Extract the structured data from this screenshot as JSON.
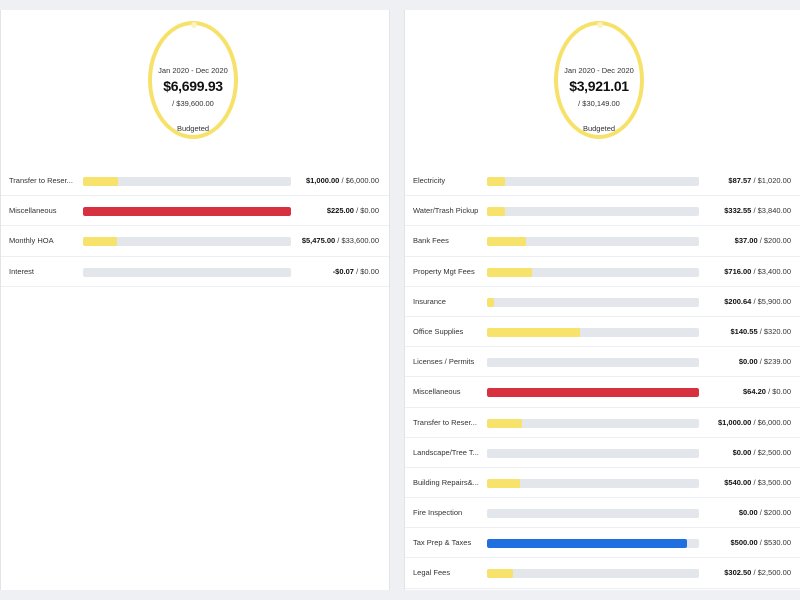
{
  "colors": {
    "bar_default": "#f7e26b",
    "bar_over": "#d7303f",
    "bar_near": "#1f6fe0",
    "track": "#e3e6ea",
    "ring": "#f6e26b"
  },
  "left": {
    "summary": {
      "period": "Jan 2020 - Dec 2020",
      "amount": "$6,699.93",
      "total": "/ $39,600.00",
      "label": "Budgeted"
    },
    "items": [
      {
        "label": "Transfer to Reser...",
        "spent": "$1,000.00",
        "budget": "/ $6,000.00",
        "fraction": 0.167,
        "status": "default"
      },
      {
        "label": "Miscellaneous",
        "spent": "$225.00",
        "budget": "/ $0.00",
        "fraction": 1.0,
        "status": "over"
      },
      {
        "label": "Monthly HOA",
        "spent": "$5,475.00",
        "budget": "/ $33,600.00",
        "fraction": 0.163,
        "status": "default"
      },
      {
        "label": "Interest",
        "spent": "-$0.07",
        "budget": "/ $0.00",
        "fraction": 0.0,
        "status": "default"
      }
    ]
  },
  "right": {
    "summary": {
      "period": "Jan 2020 - Dec 2020",
      "amount": "$3,921.01",
      "total": "/ $30,149.00",
      "label": "Budgeted"
    },
    "items": [
      {
        "label": "Electricity",
        "spent": "$87.57",
        "budget": "/ $1,020.00",
        "fraction": 0.086,
        "status": "default"
      },
      {
        "label": "Water/Trash Pickup",
        "spent": "$332.55",
        "budget": "/ $3,840.00",
        "fraction": 0.087,
        "status": "default"
      },
      {
        "label": "Bank Fees",
        "spent": "$37.00",
        "budget": "/ $200.00",
        "fraction": 0.185,
        "status": "default"
      },
      {
        "label": "Property Mgt Fees",
        "spent": "$716.00",
        "budget": "/ $3,400.00",
        "fraction": 0.211,
        "status": "default"
      },
      {
        "label": "Insurance",
        "spent": "$200.64",
        "budget": "/ $5,900.00",
        "fraction": 0.034,
        "status": "default"
      },
      {
        "label": "Office Supplies",
        "spent": "$140.55",
        "budget": "/ $320.00",
        "fraction": 0.439,
        "status": "default"
      },
      {
        "label": "Licenses / Permits",
        "spent": "$0.00",
        "budget": "/ $239.00",
        "fraction": 0.0,
        "status": "default"
      },
      {
        "label": "Miscellaneous",
        "spent": "$64.20",
        "budget": "/ $0.00",
        "fraction": 1.0,
        "status": "over"
      },
      {
        "label": "Transfer to Reser...",
        "spent": "$1,000.00",
        "budget": "/ $6,000.00",
        "fraction": 0.167,
        "status": "default"
      },
      {
        "label": "Landscape/Tree T...",
        "spent": "$0.00",
        "budget": "/ $2,500.00",
        "fraction": 0.0,
        "status": "default"
      },
      {
        "label": "Building Repairs&...",
        "spent": "$540.00",
        "budget": "/ $3,500.00",
        "fraction": 0.154,
        "status": "default"
      },
      {
        "label": "Fire Inspection",
        "spent": "$0.00",
        "budget": "/ $200.00",
        "fraction": 0.0,
        "status": "default"
      },
      {
        "label": "Tax Prep & Taxes",
        "spent": "$500.00",
        "budget": "/ $530.00",
        "fraction": 0.943,
        "status": "near"
      },
      {
        "label": "Legal Fees",
        "spent": "$302.50",
        "budget": "/ $2,500.00",
        "fraction": 0.121,
        "status": "default"
      }
    ]
  }
}
